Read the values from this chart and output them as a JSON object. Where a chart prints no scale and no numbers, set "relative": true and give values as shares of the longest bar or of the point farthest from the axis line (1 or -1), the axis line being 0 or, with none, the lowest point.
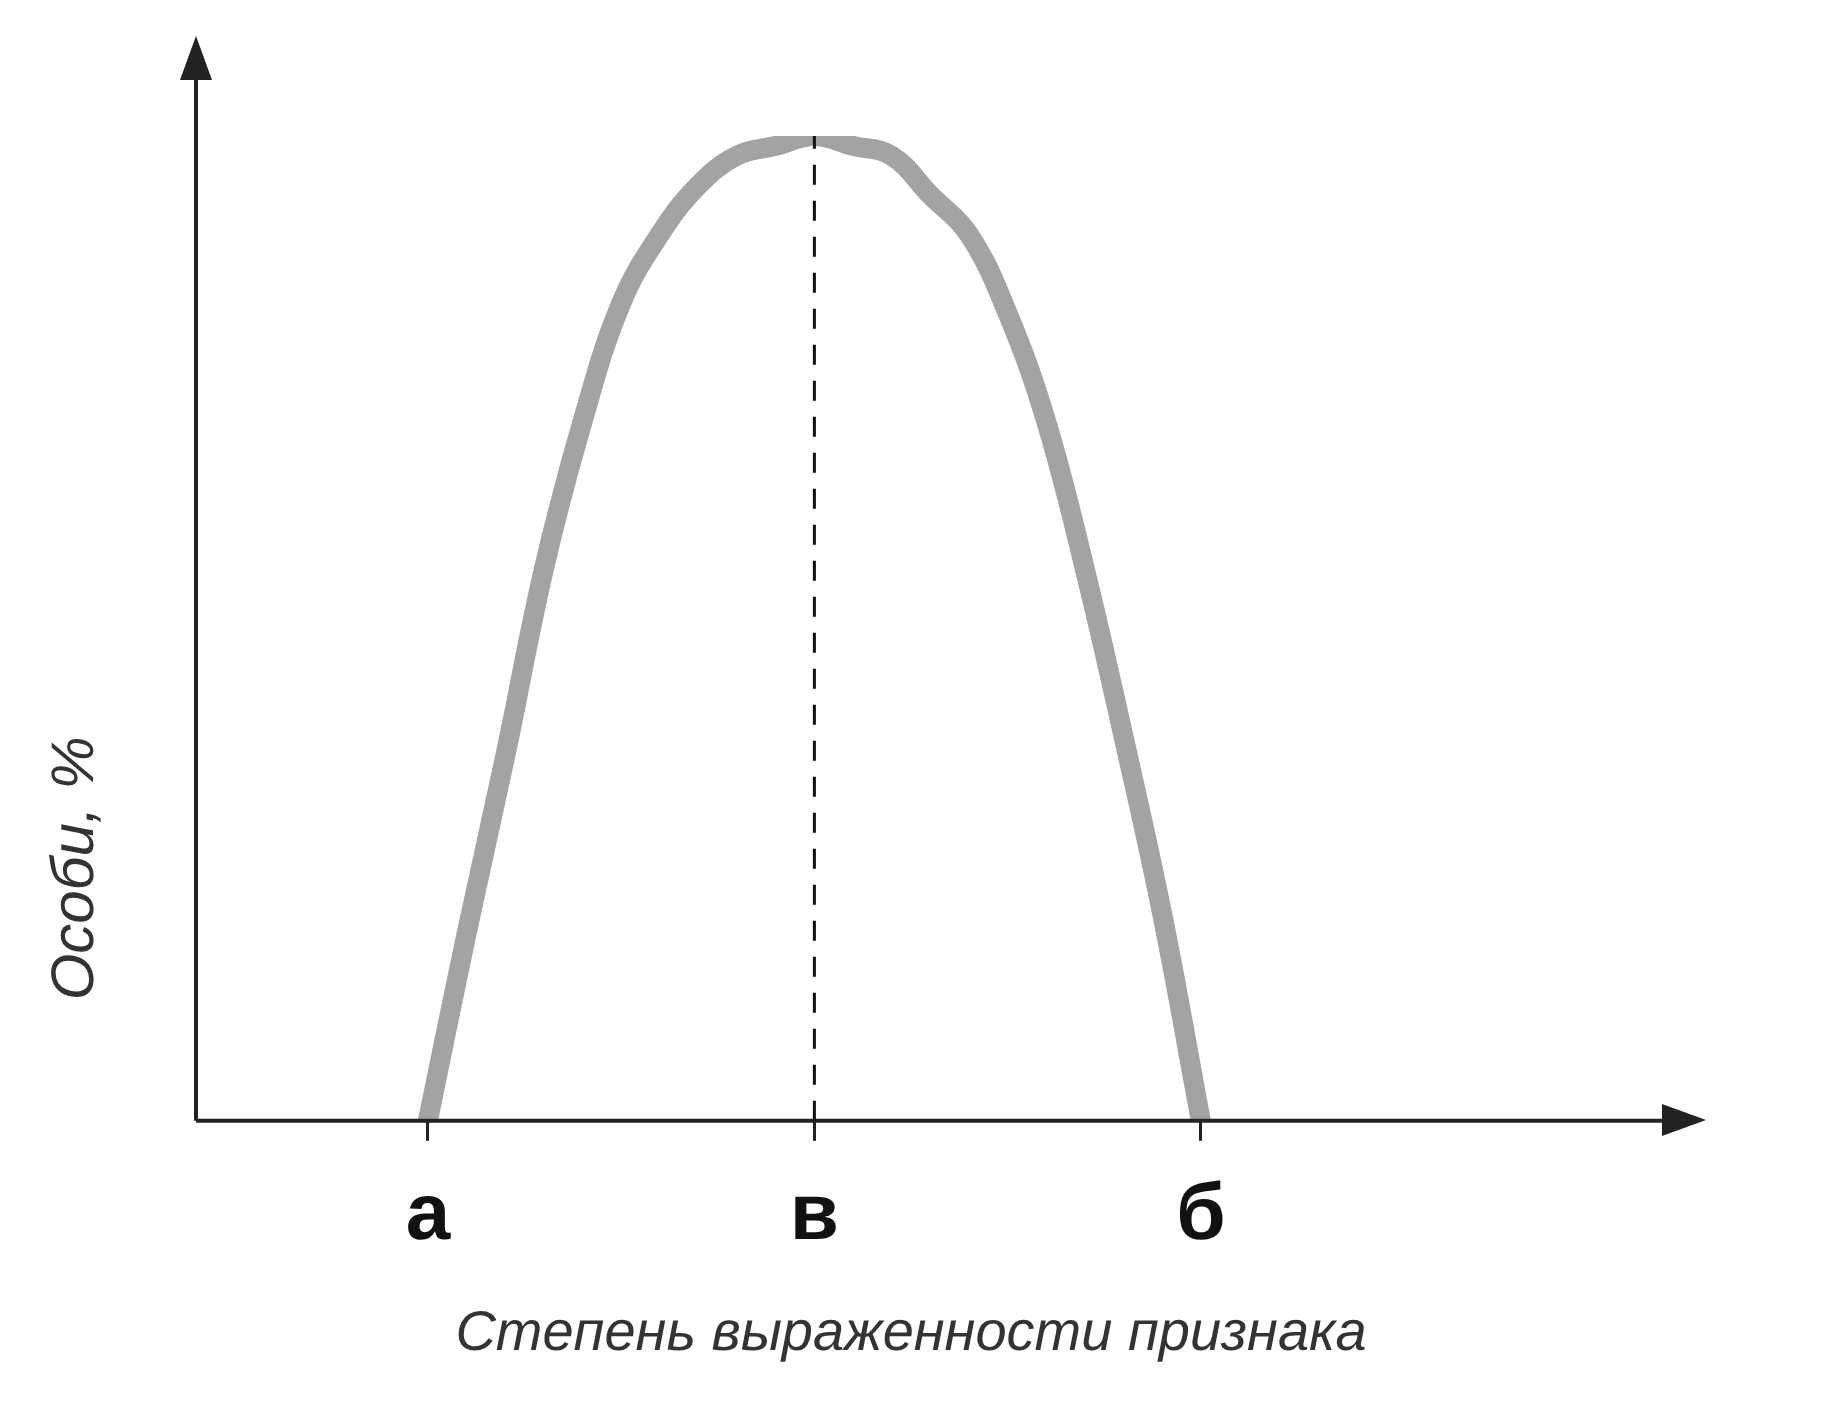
{
  "chart_data": {
    "type": "line",
    "relative": true,
    "xlabel": "Степень выраженности признака",
    "ylabel": "Особи, %",
    "categories": [
      null,
      null,
      null,
      null,
      null,
      null,
      "а",
      null,
      null,
      null,
      null,
      null,
      null,
      null,
      null,
      null,
      "в",
      null,
      null,
      null,
      null,
      null,
      null,
      null,
      null,
      null,
      "б",
      null,
      null,
      null,
      null,
      null,
      null,
      null,
      null,
      null,
      null,
      null
    ],
    "series": [
      {
        "color": "#a3a3a3",
        "values": [
          null,
          null,
          null,
          null,
          null,
          null,
          0,
          0.19,
          0.37,
          0.56,
          0.71,
          0.83,
          0.9,
          0.95,
          0.98,
          0.99,
          1,
          0.99,
          0.98,
          0.94,
          0.9,
          0.82,
          0.71,
          0.56,
          0.39,
          0.21,
          0,
          null,
          null,
          null,
          null,
          null,
          null,
          null,
          null,
          null,
          null,
          null
        ]
      }
    ],
    "ref_lines": [
      {
        "axis": "x",
        "value": "в",
        "line_style": "dashed"
      }
    ],
    "tick_labels": "x",
    "grid": false,
    "legend": false,
    "marker": "none",
    "line_style": "solid"
  }
}
